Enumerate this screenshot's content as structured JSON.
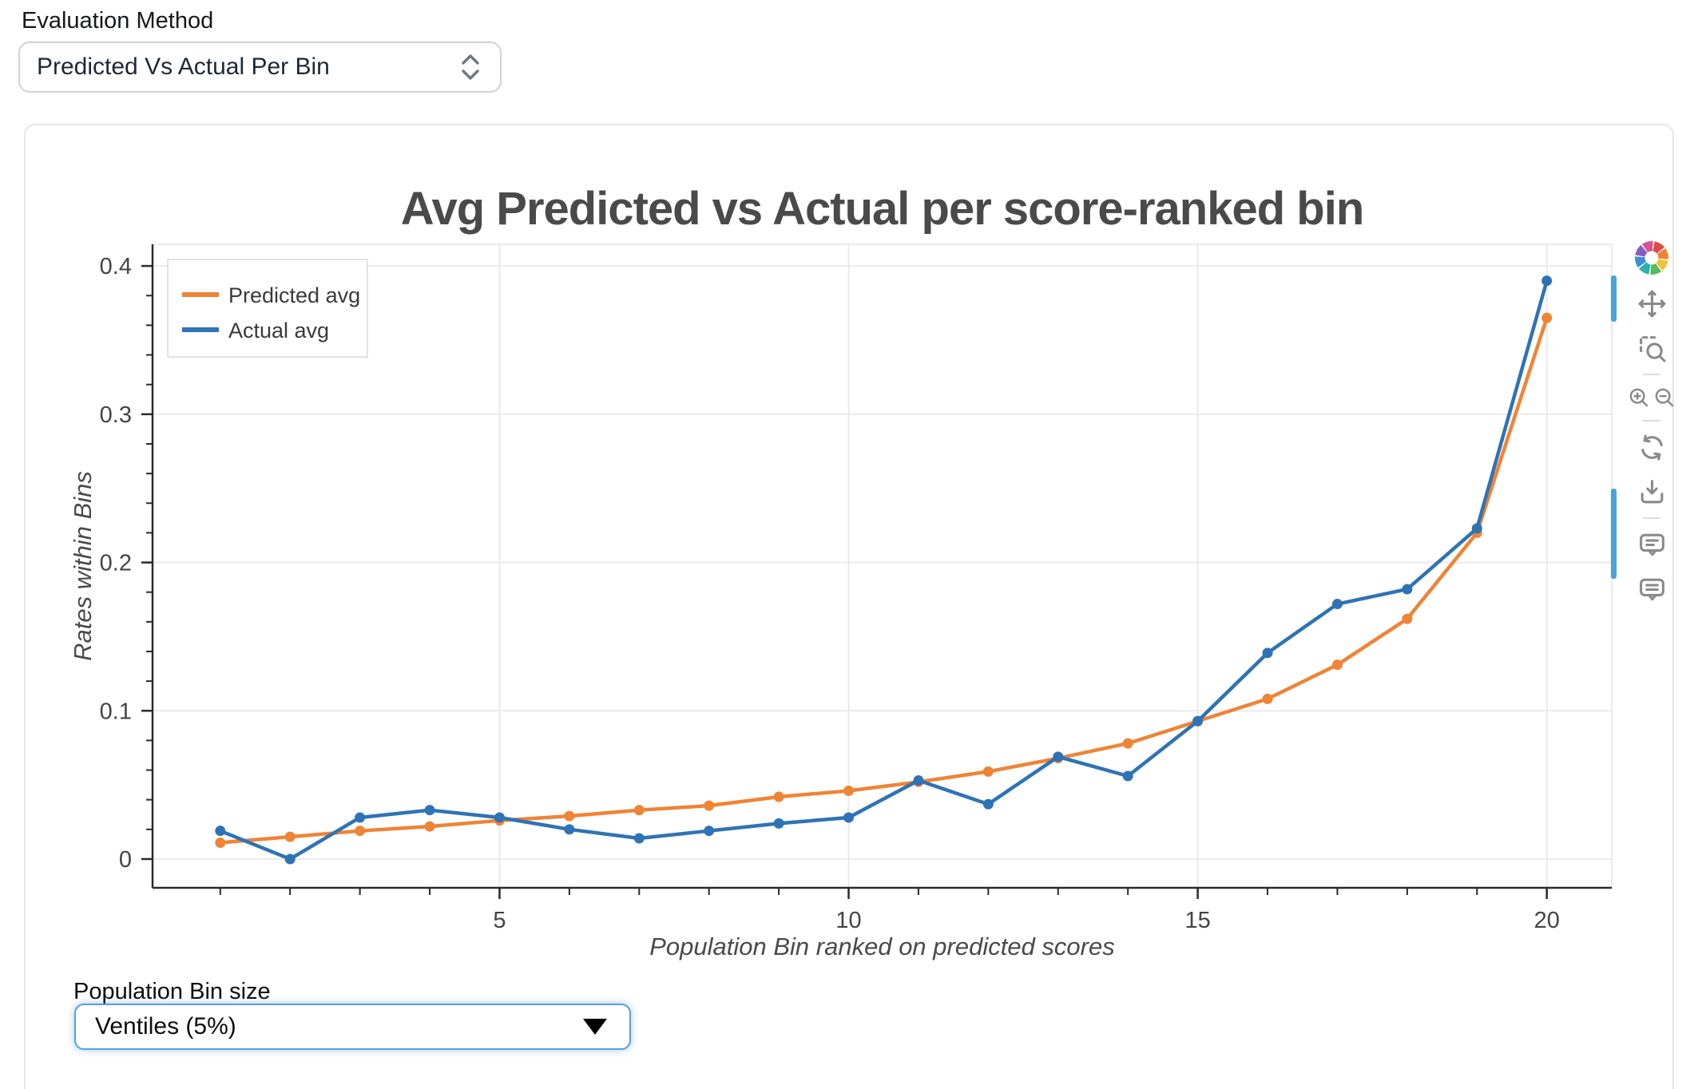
{
  "header": {
    "label": "Evaluation Method",
    "select_value": "Predicted Vs Actual Per Bin",
    "select_icon": "unfold-chevrons-icon"
  },
  "footer": {
    "label": "Population Bin size",
    "select_value": "Ventiles (5%)",
    "select_icon": "caret-down-icon"
  },
  "chart_data": {
    "type": "line",
    "title": "Avg Predicted vs Actual per score-ranked bin",
    "xlabel": "Population Bin ranked on predicted scores",
    "ylabel": "Rates within Bins",
    "x": [
      1,
      2,
      3,
      4,
      5,
      6,
      7,
      8,
      9,
      10,
      11,
      12,
      13,
      14,
      15,
      16,
      17,
      18,
      19,
      20
    ],
    "series": [
      {
        "name": "Predicted avg",
        "color": "#ef8435",
        "values": [
          0.011,
          0.015,
          0.019,
          0.022,
          0.026,
          0.029,
          0.033,
          0.036,
          0.042,
          0.046,
          0.052,
          0.059,
          0.068,
          0.078,
          0.093,
          0.108,
          0.131,
          0.162,
          0.22,
          0.365
        ]
      },
      {
        "name": "Actual avg",
        "color": "#2e73b5",
        "values": [
          0.019,
          0.0,
          0.028,
          0.033,
          0.028,
          0.02,
          0.014,
          0.019,
          0.024,
          0.028,
          0.053,
          0.037,
          0.069,
          0.056,
          0.093,
          0.139,
          0.172,
          0.182,
          0.223,
          0.39
        ]
      }
    ],
    "xlim": [
      0.03,
      20.93
    ],
    "ylim": [
      -0.0194,
      0.4146
    ],
    "x_major_ticks": [
      5,
      10,
      15,
      20
    ],
    "x_tick_labels": [
      "5",
      "10",
      "15",
      "20"
    ],
    "x_minor_step": 1,
    "y_major_ticks": [
      0,
      0.1,
      0.2,
      0.3,
      0.4
    ],
    "y_tick_labels": [
      "0",
      "0.1",
      "0.2",
      "0.3",
      "0.4"
    ],
    "y_minor_step": 0.02,
    "grid": true,
    "legend_position": "top-left"
  },
  "modebar": {
    "buttons": [
      "plotly-logo-icon",
      "pan-icon",
      "box-zoom-icon",
      "separator",
      "zoom-in-icon|zoom-out-icon",
      "separator",
      "reset-axes-icon",
      "download-icon",
      "separator",
      "hover-closest-icon",
      "hover-compare-icon"
    ]
  },
  "colors": {
    "predicted": "#ef8435",
    "actual": "#2e73b5",
    "grid": "#ebebeb",
    "axis": "#2a2a2a",
    "tick_text": "#444444",
    "title_text": "#4a4a4a",
    "modebar_icon": "#8a8a8a",
    "indicator_blue": "#4ba3da",
    "select_focus_border": "#57a0d8"
  }
}
